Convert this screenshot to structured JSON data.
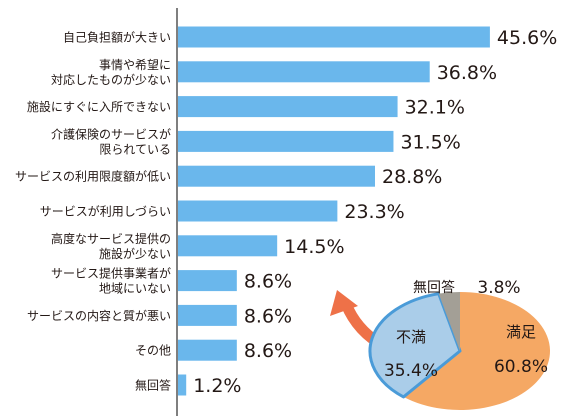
{
  "chart_data": [
    {
      "type": "bar",
      "orientation": "horizontal",
      "categories": [
        "自己負担額が大きい",
        "事情や希望に\n対応したものが少ない",
        "施設にすぐに入所できない",
        "介護保険のサービスが\n限られている",
        "サービスの利用限度額が低い",
        "サービスが利用しづらい",
        "高度なサービス提供の\n施設が少ない",
        "サービス提供事業者が\n地域にいない",
        "サービスの内容と質が悪い",
        "その他",
        "無回答"
      ],
      "values": [
        45.6,
        36.8,
        32.1,
        31.5,
        28.8,
        23.3,
        14.5,
        8.6,
        8.6,
        8.6,
        1.2
      ],
      "value_labels": [
        "45.6%",
        "36.8%",
        "32.1%",
        "31.5%",
        "28.8%",
        "23.3%",
        "14.5%",
        "8.6%",
        "8.6%",
        "8.6%",
        "1.2%"
      ],
      "unit": "%",
      "grid": false,
      "bar_color": "#6ab7ec"
    },
    {
      "type": "pie",
      "slices": [
        {
          "label": "満足",
          "value": 60.8,
          "value_label": "60.8%",
          "color": "#f5a864"
        },
        {
          "label": "不満",
          "value": 35.4,
          "value_label": "35.4%",
          "color": "#aacde9"
        },
        {
          "label": "無回答",
          "value": 3.8,
          "value_label": "3.8%",
          "color": "#a39f96"
        }
      ]
    }
  ],
  "colors": {
    "arrow": "#ee7148",
    "axis": "#555555",
    "text": "#231815",
    "highlight_ring": "#4a9bd8"
  }
}
